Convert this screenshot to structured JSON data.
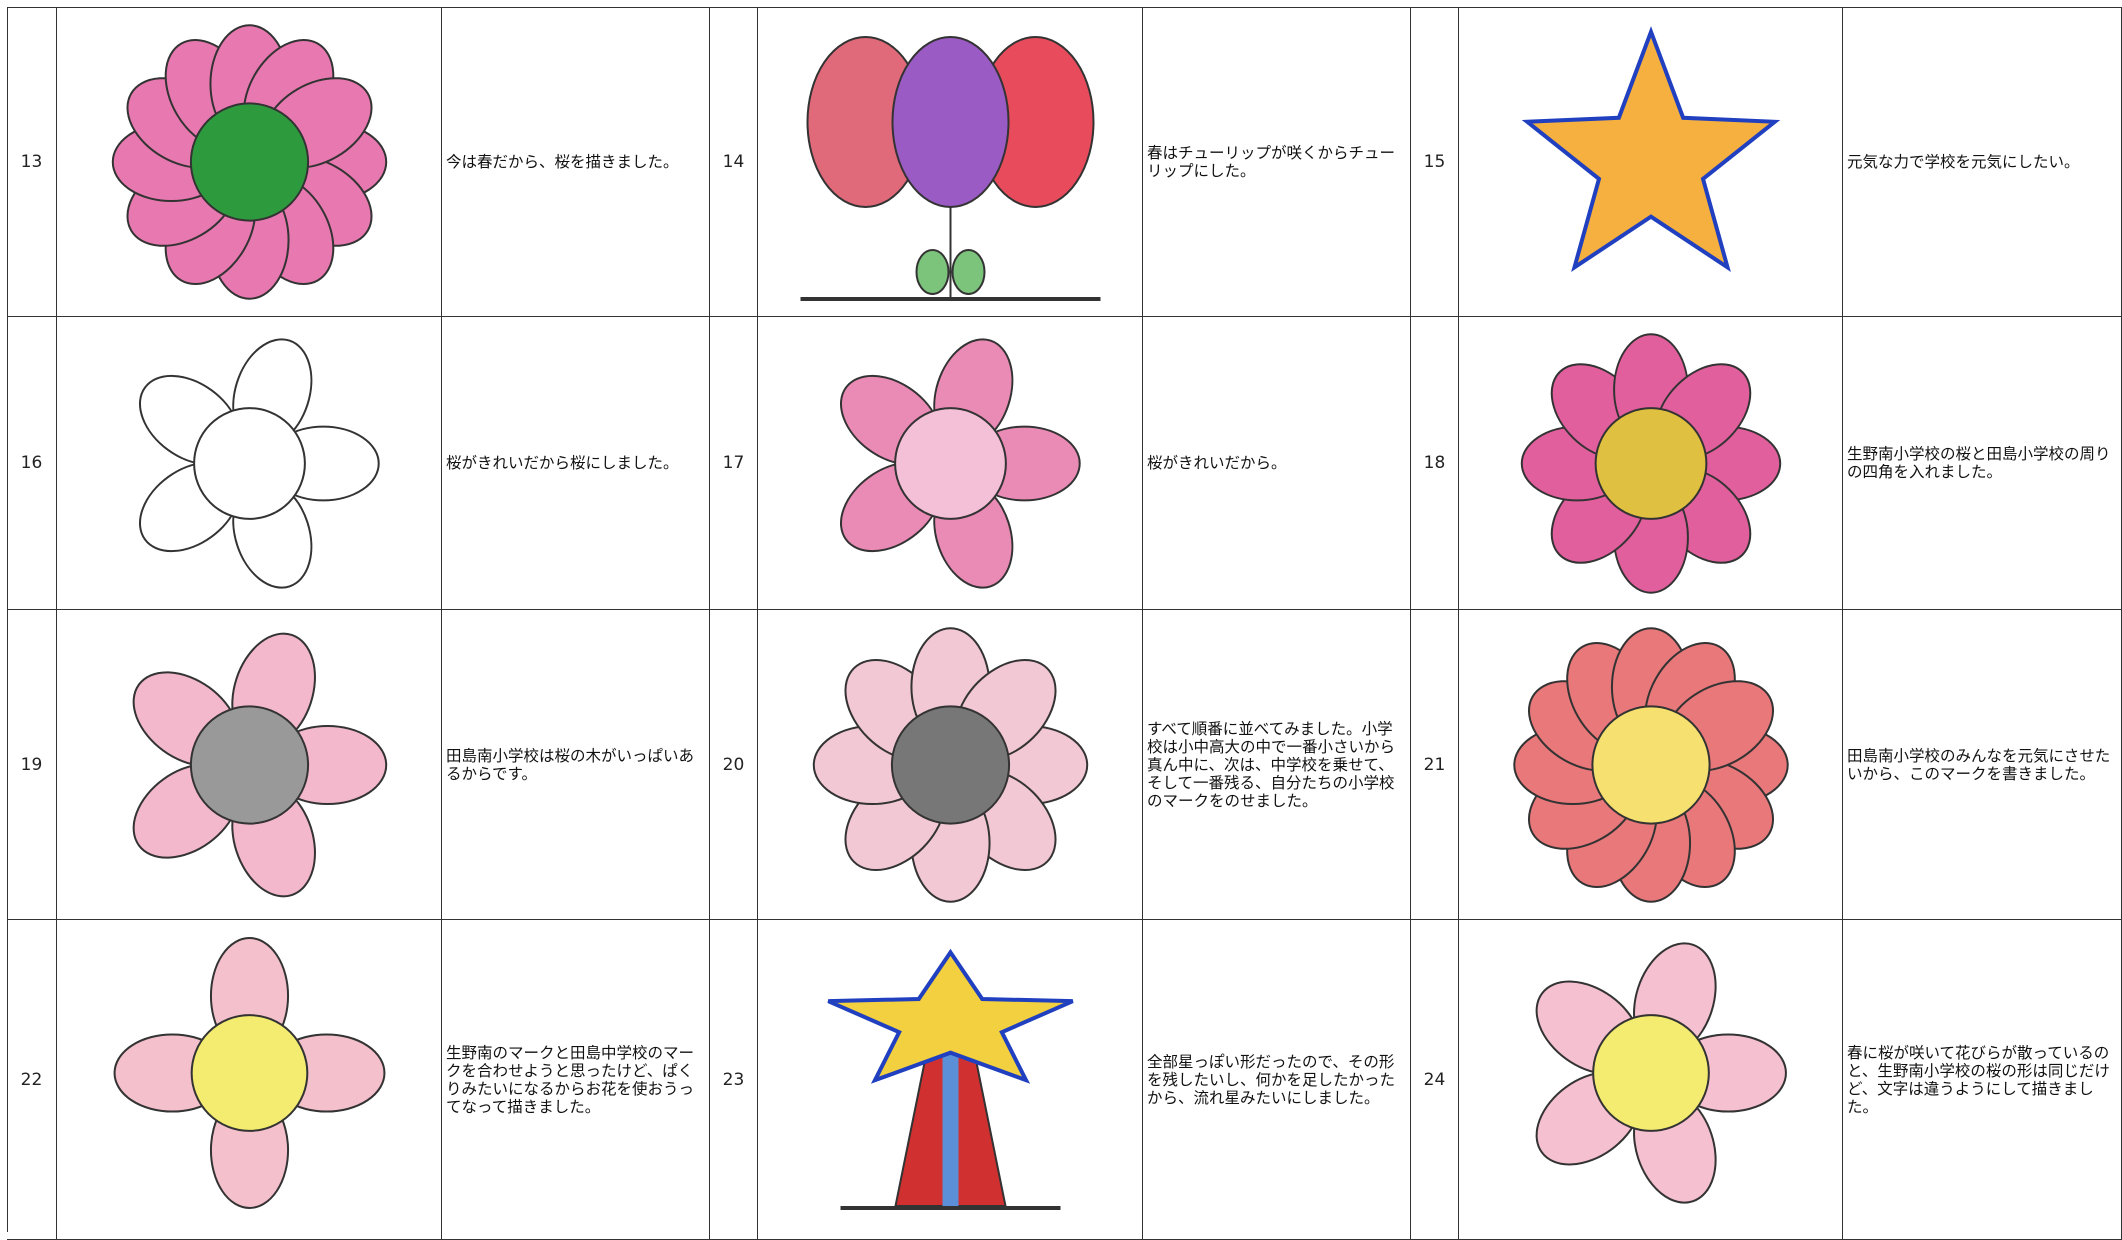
{
  "table": {
    "rows": [
      [
        {
          "number": "13",
          "text": "今は春だから、桜を描きました。"
        },
        {
          "number": "14",
          "text": "春はチューリップが咲くからチューリップにした。"
        },
        {
          "number": "15",
          "text": "元気な力で学校を元気にしたい。"
        }
      ],
      [
        {
          "number": "16",
          "text": "桜がきれいだから桜にしました。"
        },
        {
          "number": "17",
          "text": "桜がきれいだから。"
        },
        {
          "number": "18",
          "text": "生野南小学校の桜と田島小学校の周りの四角を入れました。"
        }
      ],
      [
        {
          "number": "19",
          "text": "田島南小学校は桜の木がいっぱいあるからです。"
        },
        {
          "number": "20",
          "text": "すべて順番に並べてみました。小学校は小中高大の中で一番小さいから真ん中に、次は、中学校を乗せて、そして一番残る、自分たちの小学校のマークをのせました。"
        },
        {
          "number": "21",
          "text": "田島南小学校のみんなを元気にさせたいから、このマークを書きました。"
        }
      ],
      [
        {
          "number": "22",
          "text": "生野南のマークと田島中学校のマークを合わせようと思ったけど、ぱくりみたいになるからお花を使おうってなって描きました。"
        },
        {
          "number": "23",
          "text": "全部星っぽい形だったので、その形を残したいし、何かを足したかったから、流れ星みたいにしました。"
        },
        {
          "number": "24",
          "text": "春に桜が咲いて花びらが散っているのと、生野南小学校の桜の形は同じだけど、文字は違うようにして描きました。"
        }
      ]
    ]
  }
}
